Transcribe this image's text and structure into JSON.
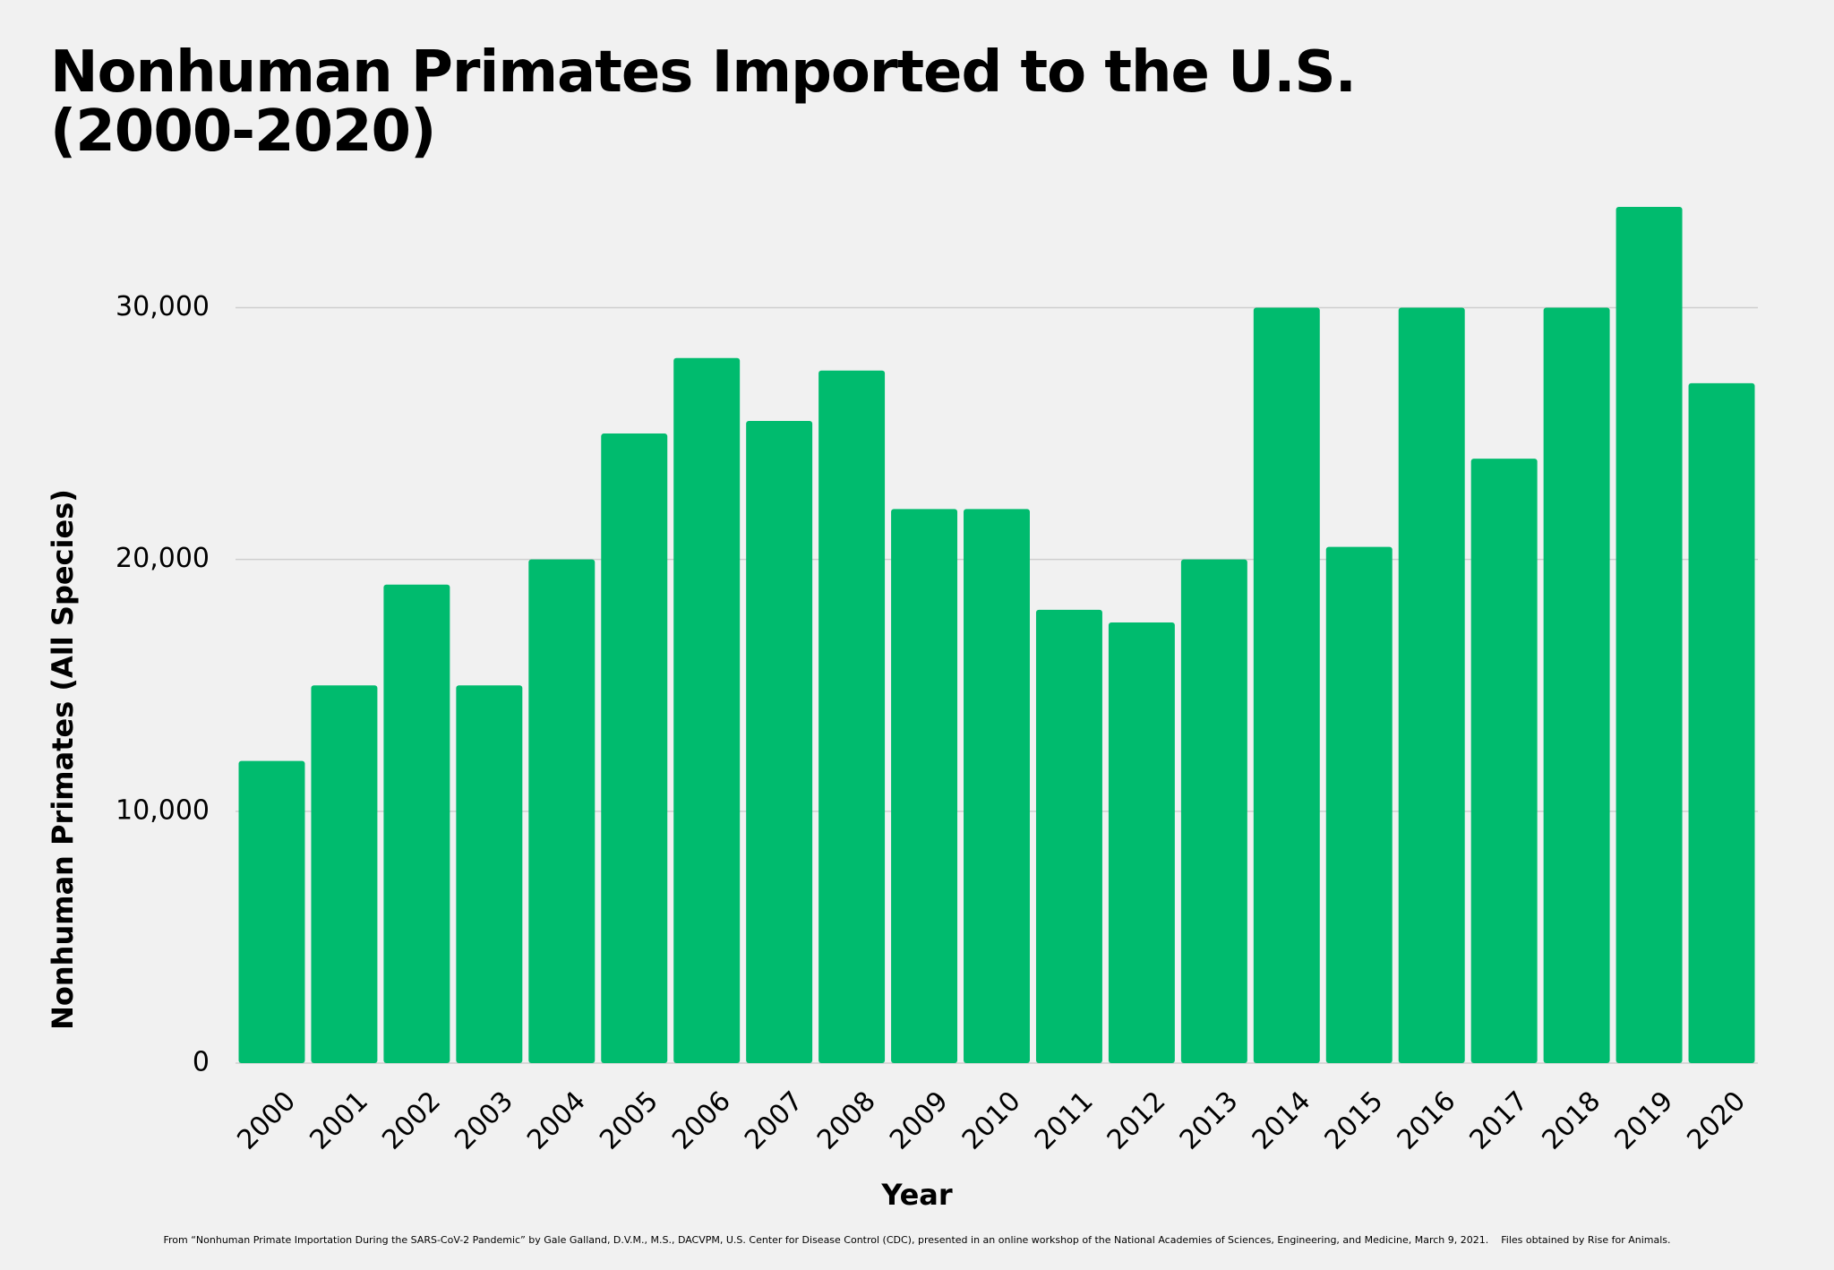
{
  "chart_data": {
    "type": "bar",
    "title": "Nonhuman Primates Imported to the U.S. (2000-2020)",
    "x_label": "Year",
    "y_label": "Nonhuman Primates (All Species)",
    "source": "From “Nonhuman Primate Importation During the SARS-CoV-2 Pandemic” by Gale Galland, D.V.M., M.S., DACVPM, U.S. Center for Disease Control (CDC), presented in an online workshop of the National Academies of Sciences, Engineering, and Medicine, March 9, 2021.    Files obtained by Rise for Animals.",
    "categories": [
      "2000",
      "2001",
      "2002",
      "2003",
      "2004",
      "2005",
      "2006",
      "2007",
      "2008",
      "2009",
      "2010",
      "2011",
      "2012",
      "2013",
      "2014",
      "2015",
      "2016",
      "2017",
      "2018",
      "2019",
      "2020"
    ],
    "values": [
      12000,
      15000,
      19000,
      15000,
      20000,
      25000,
      28000,
      25500,
      27500,
      22000,
      22000,
      18000,
      17500,
      20000,
      30000,
      20500,
      30000,
      24000,
      30000,
      34000,
      27000
    ],
    "color": "#00bb6e",
    "ylim": [
      0,
      34000
    ],
    "yticks": [
      0,
      {
        "value": 10000,
        "label": "10,000"
      },
      {
        "value": 20000,
        "label": "20,000"
      },
      {
        "value": 30000,
        "label": "30,000"
      }
    ],
    "grid": true
  }
}
